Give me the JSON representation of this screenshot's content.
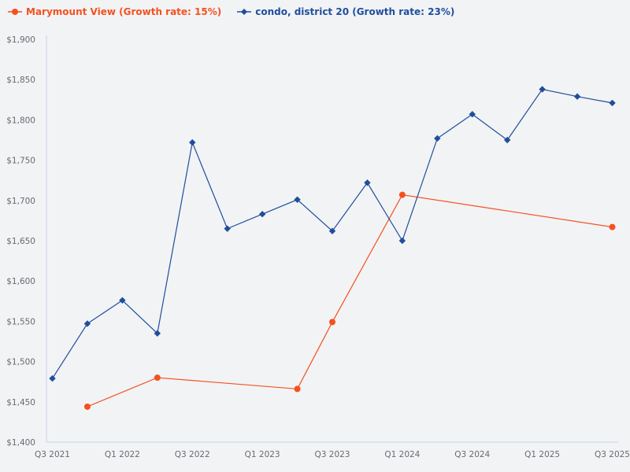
{
  "chart_data": {
    "type": "line",
    "title": "",
    "xlabel": "",
    "ylabel": "",
    "ylim": [
      1400,
      1900
    ],
    "yticks": [
      "$1,400",
      "$1,450",
      "$1,500",
      "$1,550",
      "$1,600",
      "$1,650",
      "$1,700",
      "$1,750",
      "$1,800",
      "$1,850",
      "$1,900"
    ],
    "ytick_values": [
      1400,
      1450,
      1500,
      1550,
      1600,
      1650,
      1700,
      1750,
      1800,
      1850,
      1900
    ],
    "x": [
      "Q3 2021",
      "Q4 2021",
      "Q1 2022",
      "Q2 2022",
      "Q3 2022",
      "Q4 2022",
      "Q1 2023",
      "Q2 2023",
      "Q3 2023",
      "Q4 2023",
      "Q1 2024",
      "Q2 2024",
      "Q3 2024",
      "Q4 2024",
      "Q1 2025",
      "Q2 2025",
      "Q3 2025"
    ],
    "xtick_labels": [
      "Q3 2021",
      "Q1 2022",
      "Q3 2022",
      "Q1 2023",
      "Q3 2023",
      "Q1 2024",
      "Q3 2024",
      "Q1 2025",
      "Q3 2025"
    ],
    "grid": false,
    "legend_position": "top-left",
    "series": [
      {
        "name": "Marymount View (Growth rate: 15%)",
        "color": "#f4511e",
        "marker": "circle",
        "values": [
          null,
          1444,
          null,
          1480,
          null,
          null,
          null,
          1466,
          1549,
          null,
          1707,
          null,
          null,
          null,
          null,
          null,
          1667
        ]
      },
      {
        "name": "condo, district 20 (Growth rate: 23%)",
        "color": "#1f4e9c",
        "marker": "diamond",
        "values": [
          1479,
          1547,
          1576,
          1535,
          1772,
          1665,
          1683,
          1701,
          1662,
          1722,
          1650,
          1777,
          1807,
          1775,
          1838,
          1829,
          1821
        ]
      }
    ]
  },
  "legend": {
    "items": [
      {
        "label": "Marymount View (Growth rate: 15%)",
        "color": "#f4511e",
        "icon": "circle-marker-icon"
      },
      {
        "label": "condo, district 20 (Growth rate: 23%)",
        "color": "#1f4e9c",
        "icon": "diamond-marker-icon"
      }
    ]
  },
  "colors": {
    "background": "#f2f3f5",
    "axis": "#c5d3e8",
    "tick_text": "#666a70"
  }
}
